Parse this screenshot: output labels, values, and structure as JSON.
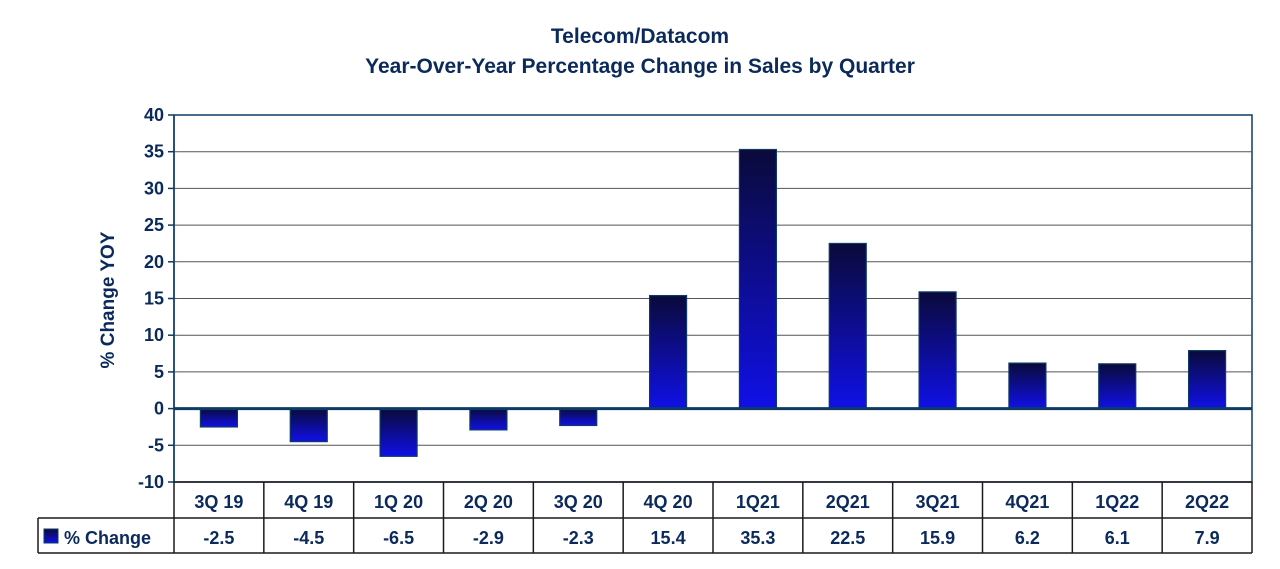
{
  "chart_data": {
    "type": "bar",
    "title": "Telecom/Datacom",
    "subtitle": "Year-Over-Year Percentage Change in Sales by Quarter",
    "ylabel": "% Change YOY",
    "xlabel": "",
    "ylim": [
      -10,
      40
    ],
    "yticks": [
      40,
      35,
      30,
      25,
      20,
      15,
      10,
      5,
      0,
      -5,
      -10
    ],
    "grid": true,
    "categories": [
      "3Q 19",
      "4Q 19",
      "1Q 20",
      "2Q 20",
      "3Q 20",
      "4Q 20",
      "1Q21",
      "2Q21",
      "3Q21",
      "4Q21",
      "1Q22",
      "2Q22"
    ],
    "series": [
      {
        "name": "% Change",
        "values": [
          -2.5,
          -4.5,
          -6.5,
          -2.9,
          -2.3,
          15.4,
          35.3,
          22.5,
          15.9,
          6.2,
          6.1,
          7.9
        ],
        "labels": [
          "-2.5",
          "-4.5",
          "-6.5",
          "-2.9",
          "-2.3",
          "15.4",
          "35.3",
          "22.5",
          "15.9",
          "6.2",
          "6.1",
          "7.9"
        ]
      }
    ],
    "legend": "data-table",
    "colors": {
      "bar_top": "#0a0a3a",
      "bar_bottom": "#1010e8",
      "bar_stroke": "#0d3b66",
      "text": "#0b2a5b",
      "grid": "#555555"
    }
  }
}
